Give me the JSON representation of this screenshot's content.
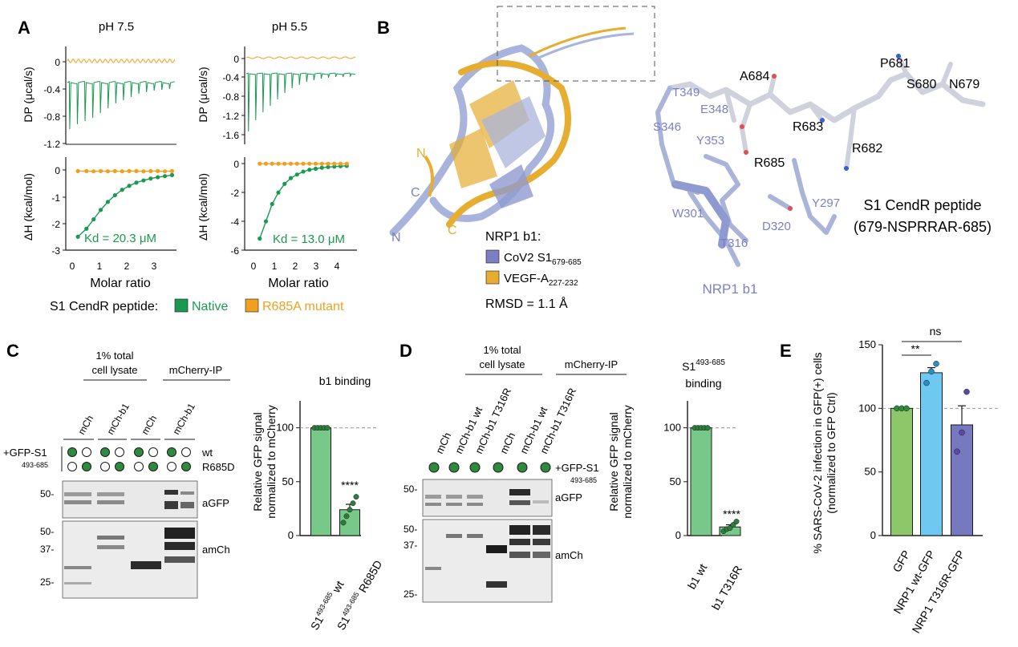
{
  "panel_labels": {
    "a": "A",
    "b": "B",
    "c": "C",
    "d": "D",
    "e": "E"
  },
  "colors": {
    "native": "#1a9950",
    "mutant": "#f0a020",
    "nrp1": "#7b7fc4",
    "vegf": "#e6ad30",
    "gfp_bar": "#8cc86a",
    "wt_bar": "#6ec8f0",
    "t316r_bar": "#7678c0",
    "c_bar": "#78c88a",
    "ink": "#1a1a1a"
  },
  "panel_a": {
    "left": {
      "title": "pH 7.5",
      "dp_ylabel": "DP (μcal/s)",
      "dh_ylabel": "ΔH (kcal/mol)",
      "dp_ticks": [
        "0",
        "-0.4",
        "-0.8",
        "-1.2"
      ],
      "dh_ticks": [
        "0",
        "-1",
        "-2",
        "-3"
      ],
      "x_ticks": [
        "0",
        "1",
        "2",
        "3"
      ],
      "xlabel": "Molar ratio",
      "kd": "Kd = 20.3 μM"
    },
    "right": {
      "title": "pH 5.5",
      "dp_ylabel": "DP (μcal/s)",
      "dh_ylabel": "ΔH (kcal/mol)",
      "dp_ticks": [
        "0",
        "-0.4",
        "-0.8",
        "-1.2",
        "-1.6"
      ],
      "dh_ticks": [
        "0",
        "-2",
        "-4",
        "-6"
      ],
      "x_ticks": [
        "0",
        "1",
        "2",
        "3",
        "4"
      ],
      "xlabel": "Molar ratio",
      "kd": "Kd = 13.0 μM"
    },
    "legend": {
      "prefix": "S1 CendR peptide:",
      "native": "Native",
      "mutant": "R685A mutant"
    }
  },
  "panel_b": {
    "ribbon_labels": {
      "n_vegf": "N",
      "c_vegf": "C",
      "c_nrp": "C",
      "n_nrp": "N"
    },
    "legend": {
      "title": "NRP1 b1:",
      "item1": "CoV2 S1",
      "item1_sub": "679-685",
      "item2": "VEGF-A",
      "item2_sub": "227-232",
      "rmsd": "RMSD = 1.1 Å"
    },
    "residues_peptide": [
      "A684",
      "P681",
      "S680",
      "N679",
      "R683",
      "R682",
      "R685"
    ],
    "residues_nrp": [
      "T349",
      "E348",
      "S346",
      "Y353",
      "W301",
      "Y297",
      "D320",
      "T316"
    ],
    "peptide_label_1": "S1 CendR peptide",
    "peptide_label_2": "(679-NSPRRAR-685)",
    "nrp_label": "NRP1 b1"
  },
  "panel_c": {
    "header_total": [
      "1% total",
      "cell lysate"
    ],
    "header_ip": "mCherry-IP",
    "lanes": [
      "mCh",
      "mCh-b1",
      "mCh",
      "mCh-b1"
    ],
    "gfp_label_1": "+GFP-S1",
    "gfp_label_2": "493-685",
    "row_wt": "wt",
    "row_mut": "R685D",
    "blot_labels": [
      "aGFP",
      "amCh"
    ],
    "mw_top": [
      "50-"
    ],
    "mw_bottom": [
      "50-",
      "37-",
      "25-"
    ],
    "chart_title": "b1 binding",
    "ylabel_1": "Relative GFP signal",
    "ylabel_2": "normalized to mCherry",
    "yticks": [
      "0",
      "50",
      "100"
    ],
    "sig": "****",
    "xcat": [
      {
        "base": "S1",
        "sup": "493-685",
        "rest": " wt"
      },
      {
        "base": "S1",
        "sup": "493-685",
        "rest": " R685D"
      }
    ]
  },
  "panel_d": {
    "header_total": [
      "1% total",
      "cell lysate"
    ],
    "header_ip": "mCherry-IP",
    "lanes": [
      "mCh",
      "mCh-b1 wt",
      "mCh-b1 T316R",
      "mCh",
      "mCh-b1 wt",
      "mCh-b1 T316R"
    ],
    "gfp_label_1": "+GFP-S1",
    "gfp_label_2": "493-685",
    "blot_labels": [
      "aGFP",
      "amCh"
    ],
    "mw_top": [
      "50-"
    ],
    "mw_bottom": [
      "50-",
      "37-",
      "25-"
    ],
    "chart_title_1": "S1",
    "chart_title_sup": "493-685",
    "chart_title_2": "binding",
    "ylabel_1": "Relative GFP signal",
    "ylabel_2": "normalized to mCherry",
    "yticks": [
      "0",
      "50",
      "100"
    ],
    "sig": "****",
    "xcat": [
      "b1 wt",
      "b1 T316R"
    ]
  },
  "panel_e": {
    "ylabel_1": "% SARS-CoV-2 infection in GFP(+) cells",
    "ylabel_2": "(normalized to GFP Ctrl)",
    "yticks": [
      "0",
      "50",
      "100",
      "150"
    ],
    "sig_ns": "ns",
    "sig_2": "**",
    "xcat": [
      "GFP",
      "NRP1 wt-GFP",
      "NRP1 T316R-GFP"
    ]
  },
  "chart_data": [
    {
      "type": "line",
      "title": "pH 7.5",
      "xlabel": "Molar ratio",
      "ylabel": "ΔH (kcal/mol)",
      "xlim": [
        0,
        3.6
      ],
      "ylim": [
        -3,
        0.2
      ],
      "series": [
        {
          "name": "Native",
          "x": [
            0.2,
            0.5,
            0.75,
            1.0,
            1.25,
            1.5,
            1.75,
            2.0,
            2.25,
            2.5,
            2.75,
            3.0,
            3.25,
            3.5
          ],
          "y": [
            -2.5,
            -2.2,
            -1.85,
            -1.5,
            -1.2,
            -0.95,
            -0.75,
            -0.6,
            -0.48,
            -0.4,
            -0.33,
            -0.28,
            -0.24,
            -0.2
          ]
        },
        {
          "name": "R685A mutant",
          "x": [
            0.2,
            0.5,
            0.75,
            1.0,
            1.25,
            1.5,
            1.75,
            2.0,
            2.25,
            2.5,
            2.75,
            3.0,
            3.25,
            3.5
          ],
          "y": [
            -0.05,
            -0.05,
            -0.06,
            -0.05,
            -0.06,
            -0.05,
            -0.06,
            -0.05,
            -0.05,
            -0.06,
            -0.05,
            -0.05,
            -0.06,
            -0.05
          ]
        }
      ]
    },
    {
      "type": "line",
      "title": "pH 5.5",
      "xlabel": "Molar ratio",
      "ylabel": "ΔH (kcal/mol)",
      "xlim": [
        0,
        4.8
      ],
      "ylim": [
        -6,
        0.4
      ],
      "series": [
        {
          "name": "Native",
          "x": [
            0.3,
            0.6,
            0.9,
            1.2,
            1.5,
            1.8,
            2.1,
            2.4,
            2.7,
            3.0,
            3.3,
            3.6,
            3.9,
            4.2,
            4.5
          ],
          "y": [
            -5.2,
            -4.0,
            -2.8,
            -2.0,
            -1.4,
            -1.0,
            -0.75,
            -0.55,
            -0.42,
            -0.35,
            -0.28,
            -0.23,
            -0.2,
            -0.17,
            -0.15
          ]
        },
        {
          "name": "R685A mutant",
          "x": [
            0.3,
            0.6,
            0.9,
            1.2,
            1.5,
            1.8,
            2.1,
            2.4,
            2.7,
            3.0,
            3.3,
            3.6,
            3.9,
            4.2,
            4.5
          ],
          "y": [
            0,
            0,
            0,
            0,
            0,
            0,
            0,
            0,
            0,
            0,
            0,
            0,
            0,
            0,
            0
          ]
        }
      ]
    },
    {
      "type": "bar",
      "title": "b1 binding",
      "ylabel": "Relative GFP signal normalized to mCherry",
      "ylim": [
        0,
        125
      ],
      "categories": [
        "S1 493-685 wt",
        "S1 493-685 R685D"
      ],
      "values": [
        100,
        24
      ],
      "points": [
        [
          100,
          100,
          100,
          100,
          100
        ],
        [
          12,
          18,
          24,
          30,
          36
        ]
      ],
      "sem": [
        0,
        5
      ]
    },
    {
      "type": "bar",
      "title": "S1 493-685 binding",
      "ylabel": "Relative GFP signal normalized to mCherry",
      "ylim": [
        0,
        125
      ],
      "categories": [
        "b1 wt",
        "b1 T316R"
      ],
      "values": [
        100,
        8
      ],
      "points": [
        [
          100,
          100,
          100,
          100,
          100
        ],
        [
          4,
          6,
          7,
          10,
          13
        ]
      ],
      "sem": [
        0,
        2
      ]
    },
    {
      "type": "bar",
      "ylabel": "% SARS-CoV-2 infection in GFP(+) cells (normalized to GFP Ctrl)",
      "ylim": [
        0,
        150
      ],
      "categories": [
        "GFP",
        "NRP1 wt-GFP",
        "NRP1 T316R-GFP"
      ],
      "values": [
        100,
        128,
        87
      ],
      "points": [
        [
          100,
          100,
          100
        ],
        [
          120,
          129,
          135
        ],
        [
          66,
          81,
          113
        ]
      ],
      "sem": [
        0,
        4,
        15
      ]
    }
  ]
}
